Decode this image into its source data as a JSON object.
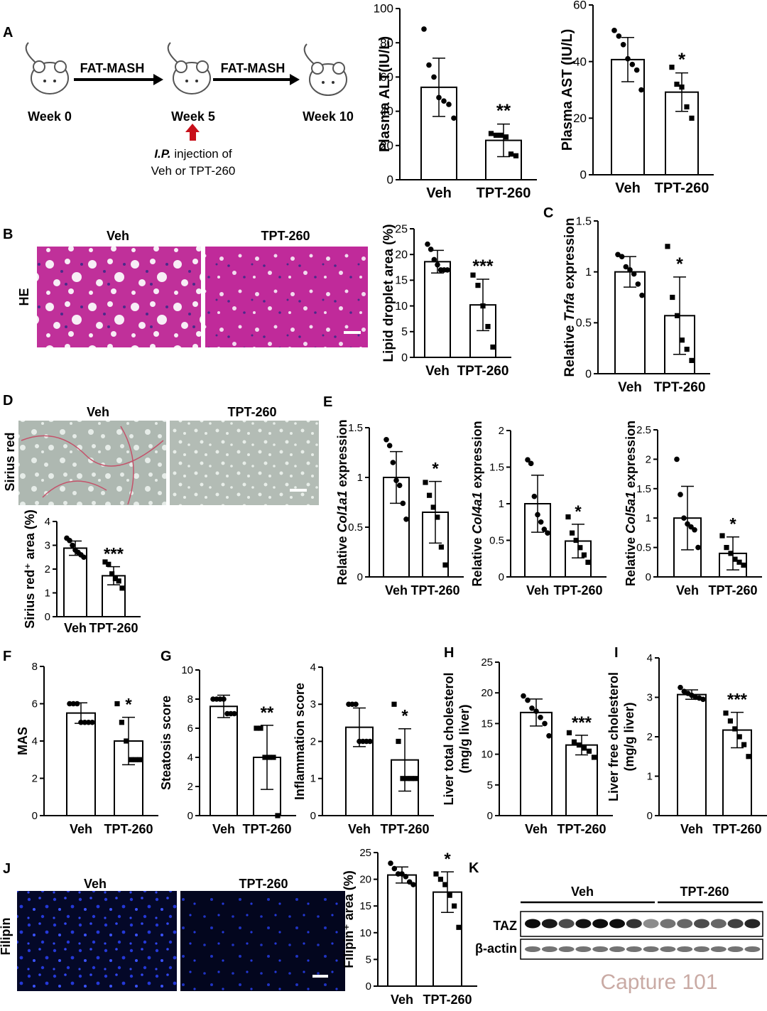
{
  "panelA": {
    "letter": "A",
    "arrow1": "FAT-MASH",
    "arrow2": "FAT-MASH",
    "week0": "Week 0",
    "week5": "Week 5",
    "week10": "Week 10",
    "injection_line1_italic": "I.P.",
    "injection_line1_rest": " injection of",
    "injection_line2": "Veh or TPT-260"
  },
  "panelB": {
    "letter": "B",
    "row_label": "HE",
    "img_veh": "Veh",
    "img_tpt": "TPT-260"
  },
  "panelD": {
    "letter": "D",
    "row_label": "Sirius red",
    "img_veh": "Veh",
    "img_tpt": "TPT-260"
  },
  "panelE": {
    "letter": "E"
  },
  "panelF": {
    "letter": "F"
  },
  "panelG": {
    "letter": "G"
  },
  "panelH": {
    "letter": "H"
  },
  "panelI": {
    "letter": "I"
  },
  "panelJ": {
    "letter": "J",
    "row_label": "Filipin",
    "img_veh": "Veh",
    "img_tpt": "TPT-260"
  },
  "panelK": {
    "letter": "K",
    "group_veh": "Veh",
    "group_tpt": "TPT-260",
    "band1": "TAZ",
    "band2": "β-actin"
  },
  "watermark": "Capture 101",
  "chart_data": [
    {
      "id": "alt",
      "type": "bar",
      "panel": "A",
      "ylabel": "Plasma ALT(IU/L)",
      "ylim": [
        0,
        100
      ],
      "yticks": [
        0,
        20,
        40,
        60,
        80,
        100
      ],
      "categories": [
        "Veh",
        "TPT-260"
      ],
      "values": [
        54,
        23
      ],
      "sd": [
        17,
        9.5
      ],
      "significance": "**",
      "points": [
        [
          88,
          67,
          60,
          48,
          46,
          44,
          36
        ],
        [
          27,
          26,
          26,
          25,
          15,
          14
        ]
      ]
    },
    {
      "id": "ast",
      "type": "bar",
      "panel": "A",
      "ylabel": "Plasma AST (IU/L)",
      "ylim": [
        0,
        60
      ],
      "yticks": [
        0,
        20,
        40,
        60
      ],
      "categories": [
        "Veh",
        "TPT-260"
      ],
      "values": [
        40.7,
        29.2
      ],
      "sd": [
        7.8,
        6.8
      ],
      "significance": "*",
      "points": [
        [
          51,
          49,
          46,
          41,
          39,
          37,
          30
        ],
        [
          38,
          32,
          31,
          24,
          20
        ]
      ]
    },
    {
      "id": "lipid",
      "type": "bar",
      "panel": "B",
      "ylabel": "Lipid droplet area (%)",
      "ylim": [
        0,
        25
      ],
      "yticks": [
        0,
        5,
        10,
        15,
        20,
        25
      ],
      "categories": [
        "Veh",
        "TPT-260"
      ],
      "values": [
        18.6,
        10.2
      ],
      "sd": [
        2.2,
        5.0
      ],
      "significance": "***",
      "points": [
        [
          22,
          21,
          19,
          18,
          17,
          17,
          17
        ],
        [
          16,
          14,
          10,
          6,
          2
        ]
      ]
    },
    {
      "id": "tnfa",
      "type": "bar",
      "panel": "C",
      "ylabel_prefix": "Relative ",
      "ylabel_italic": "Tnfa",
      "ylabel_suffix": " expression",
      "ylim": [
        0,
        1.5
      ],
      "yticks": [
        0,
        0.5,
        1.0,
        1.5
      ],
      "categories": [
        "Veh",
        "TPT-260"
      ],
      "values": [
        1.0,
        0.57
      ],
      "sd": [
        0.15,
        0.38
      ],
      "significance": "*",
      "points": [
        [
          1.17,
          1.15,
          1.05,
          1.02,
          0.98,
          0.88,
          0.77
        ],
        [
          1.25,
          0.75,
          0.57,
          0.33,
          0.24,
          0.13
        ]
      ]
    },
    {
      "id": "sirius",
      "type": "bar",
      "panel": "D",
      "ylabel": "Sirius red⁺ area (%)",
      "ylim": [
        0,
        4
      ],
      "yticks": [
        0,
        1,
        2,
        3,
        4
      ],
      "categories": [
        "Veh",
        "TPT-260"
      ],
      "values": [
        2.88,
        1.72
      ],
      "sd": [
        0.3,
        0.38
      ],
      "significance": "***",
      "points": [
        [
          3.3,
          3.2,
          3.0,
          2.8,
          2.7,
          2.6,
          2.5
        ],
        [
          2.3,
          2.2,
          1.8,
          1.6,
          1.5,
          1.2
        ]
      ]
    },
    {
      "id": "col1a1",
      "type": "bar",
      "panel": "E",
      "ylabel_prefix": "Relative ",
      "ylabel_italic": "Col1a1",
      "ylabel_suffix": " expression",
      "ylim": [
        0,
        1.5
      ],
      "yticks": [
        0,
        0.5,
        1.0,
        1.5
      ],
      "categories": [
        "Veh",
        "TPT-260"
      ],
      "values": [
        1.0,
        0.65
      ],
      "sd": [
        0.26,
        0.31
      ],
      "significance": "*",
      "points": [
        [
          1.38,
          1.32,
          1.15,
          0.97,
          0.92,
          0.74,
          0.58
        ],
        [
          0.95,
          0.82,
          0.7,
          0.6,
          0.3,
          0.12
        ]
      ]
    },
    {
      "id": "col4a1",
      "type": "bar",
      "panel": "E",
      "ylabel_prefix": "Relative ",
      "ylabel_italic": "Col4a1",
      "ylabel_suffix": " expression",
      "ylim": [
        0,
        2.0
      ],
      "yticks": [
        0,
        0.5,
        1.0,
        1.5,
        2.0
      ],
      "categories": [
        "Veh",
        "TPT-260"
      ],
      "values": [
        1.0,
        0.49
      ],
      "sd": [
        0.39,
        0.23
      ],
      "significance": "*",
      "points": [
        [
          1.6,
          1.55,
          1.1,
          0.85,
          0.75,
          0.65,
          0.6
        ],
        [
          0.82,
          0.6,
          0.5,
          0.4,
          0.3,
          0.2
        ]
      ]
    },
    {
      "id": "col5a1",
      "type": "bar",
      "panel": "E",
      "ylabel_prefix": "Relative ",
      "ylabel_italic": "Col5a1",
      "ylabel_suffix": " expression",
      "ylim": [
        0,
        2.5
      ],
      "yticks": [
        0,
        0.5,
        1.0,
        1.5,
        2.0,
        2.5
      ],
      "categories": [
        "Veh",
        "TPT-260"
      ],
      "values": [
        1.0,
        0.4
      ],
      "sd": [
        0.54,
        0.28
      ],
      "significance": "*",
      "points": [
        [
          2.0,
          1.4,
          1.0,
          0.9,
          0.85,
          0.8,
          0.5
        ],
        [
          0.7,
          0.5,
          0.4,
          0.3,
          0.25,
          0.2
        ]
      ]
    },
    {
      "id": "mas",
      "type": "bar",
      "panel": "F",
      "ylabel": "MAS",
      "ylim": [
        0,
        8
      ],
      "yticks": [
        0,
        2,
        4,
        6,
        8
      ],
      "categories": [
        "Veh",
        "TPT-260"
      ],
      "values": [
        5.5,
        4.0
      ],
      "sd": [
        0.55,
        1.27
      ],
      "significance": "*",
      "points": [
        [
          6,
          6,
          6,
          5,
          5,
          5,
          5
        ],
        [
          6,
          5,
          4,
          3,
          3,
          3
        ]
      ]
    },
    {
      "id": "steatosis",
      "type": "bar",
      "panel": "G",
      "ylabel": "Steatosis score",
      "ylim": [
        0,
        10
      ],
      "yticks": [
        0,
        2,
        4,
        6,
        8,
        10
      ],
      "categories": [
        "Veh",
        "TPT-260"
      ],
      "values": [
        7.5,
        4.0
      ],
      "sd": [
        0.77,
        2.2
      ],
      "significance": "**",
      "points": [
        [
          8,
          8,
          8,
          8,
          7,
          7,
          7
        ],
        [
          6,
          6,
          4,
          4,
          4,
          0
        ]
      ]
    },
    {
      "id": "inflammation",
      "type": "bar",
      "panel": "G",
      "ylabel": "Inflammation score",
      "ylim": [
        0,
        4
      ],
      "yticks": [
        0,
        1,
        2,
        3,
        4
      ],
      "categories": [
        "Veh",
        "TPT-260"
      ],
      "values": [
        2.38,
        1.5
      ],
      "sd": [
        0.52,
        0.84
      ],
      "significance": "*",
      "points": [
        [
          3,
          3,
          3,
          2,
          2,
          2,
          2
        ],
        [
          3,
          2,
          1,
          1,
          1,
          1
        ]
      ]
    },
    {
      "id": "total_chol",
      "type": "bar",
      "panel": "H",
      "ylabel": "Liver total cholesterol",
      "ylabel2": "(mg/g liver)",
      "ylim": [
        0,
        25
      ],
      "yticks": [
        0,
        5,
        10,
        15,
        20,
        25
      ],
      "categories": [
        "Veh",
        "TPT-260"
      ],
      "values": [
        16.8,
        11.5
      ],
      "sd": [
        2.2,
        1.6
      ],
      "significance": "***",
      "points": [
        [
          19.5,
          18.8,
          17.5,
          17,
          16,
          15,
          13
        ],
        [
          13.5,
          12,
          11.5,
          11,
          10.5,
          9.5
        ]
      ]
    },
    {
      "id": "free_chol",
      "type": "bar",
      "panel": "I",
      "ylabel": "Liver free cholesterol",
      "ylabel2": "(mg/g liver)",
      "ylim": [
        0,
        4
      ],
      "yticks": [
        0,
        1,
        2,
        3,
        4
      ],
      "categories": [
        "Veh",
        "TPT-260"
      ],
      "values": [
        3.07,
        2.17
      ],
      "sd": [
        0.12,
        0.45
      ],
      "significance": "***",
      "points": [
        [
          3.25,
          3.15,
          3.1,
          3.05,
          3.0,
          2.98,
          2.95
        ],
        [
          2.6,
          2.4,
          2.2,
          2.0,
          1.8,
          1.5
        ]
      ]
    },
    {
      "id": "filipin",
      "type": "bar",
      "panel": "J",
      "ylabel": "Filipin⁺ area (%)",
      "ylim": [
        0,
        25
      ],
      "yticks": [
        0,
        5,
        10,
        15,
        20,
        25
      ],
      "categories": [
        "Veh",
        "TPT-260"
      ],
      "values": [
        20.8,
        17.6
      ],
      "sd": [
        1.5,
        3.8
      ],
      "significance": "*",
      "points": [
        [
          23,
          22,
          21,
          21,
          20.5,
          19.5,
          19
        ],
        [
          21,
          20,
          19,
          17,
          15,
          11
        ]
      ]
    }
  ]
}
